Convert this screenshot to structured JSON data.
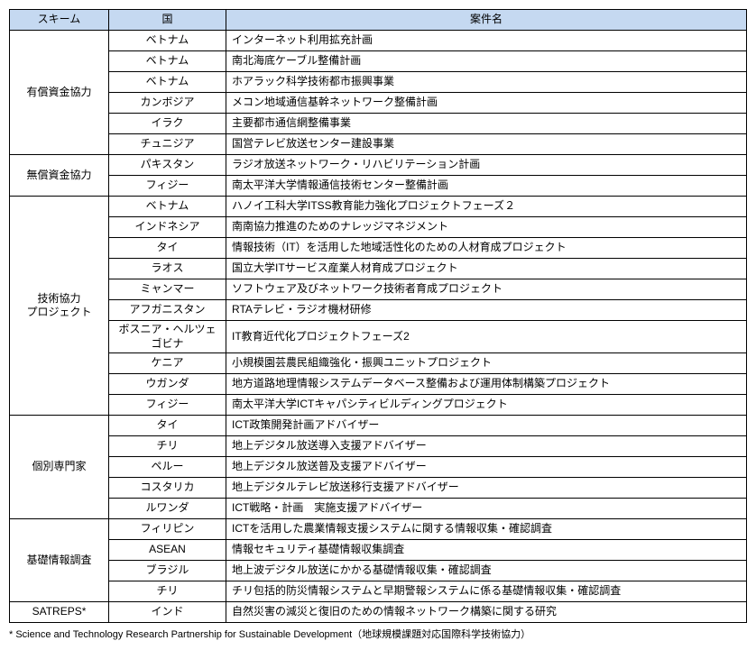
{
  "header_bg": "#c5d9f1",
  "border_color": "#000000",
  "columns": [
    "スキーム",
    "国",
    "案件名"
  ],
  "groups": [
    {
      "scheme": "有償資金協力",
      "rows": [
        {
          "country": "ベトナム",
          "project": "インターネット利用拡充計画"
        },
        {
          "country": "ベトナム",
          "project": "南北海底ケーブル整備計画"
        },
        {
          "country": "ベトナム",
          "project": "ホアラック科学技術都市振興事業"
        },
        {
          "country": "カンボジア",
          "project": "メコン地域通信基幹ネットワーク整備計画"
        },
        {
          "country": "イラク",
          "project": "主要都市通信網整備事業"
        },
        {
          "country": "チュニジア",
          "project": "国営テレビ放送センター建設事業"
        }
      ]
    },
    {
      "scheme": "無償資金協力",
      "rows": [
        {
          "country": "パキスタン",
          "project": "ラジオ放送ネットワーク・リハビリテーション計画"
        },
        {
          "country": "フィジー",
          "project": "南太平洋大学情報通信技術センター整備計画"
        }
      ]
    },
    {
      "scheme": "技術協力\nプロジェクト",
      "rows": [
        {
          "country": "ベトナム",
          "project": "ハノイ工科大学ITSS教育能力強化プロジェクトフェーズ２"
        },
        {
          "country": "インドネシア",
          "project": "南南協力推進のためのナレッジマネジメント"
        },
        {
          "country": "タイ",
          "project": "情報技術（IT）を活用した地域活性化のための人材育成プロジェクト"
        },
        {
          "country": "ラオス",
          "project": "国立大学ITサービス産業人材育成プロジェクト"
        },
        {
          "country": "ミャンマー",
          "project": "ソフトウェア及びネットワーク技術者育成プロジェクト"
        },
        {
          "country": "アフガニスタン",
          "project": "RTAテレビ・ラジオ機材研修"
        },
        {
          "country": "ボスニア・ヘルツェゴビナ",
          "project": "IT教育近代化プロジェクトフェーズ2"
        },
        {
          "country": "ケニア",
          "project": "小規模園芸農民組織強化・振興ユニットプロジェクト"
        },
        {
          "country": "ウガンダ",
          "project": "地方道路地理情報システムデータベース整備および運用体制構築プロジェクト"
        },
        {
          "country": "フィジー",
          "project": "南太平洋大学ICTキャパシティビルディングプロジェクト"
        }
      ]
    },
    {
      "scheme": "個別専門家",
      "rows": [
        {
          "country": "タイ",
          "project": "ICT政策開発計画アドバイザー"
        },
        {
          "country": "チリ",
          "project": "地上デジタル放送導入支援アドバイザー"
        },
        {
          "country": "ペルー",
          "project": "地上デジタル放送普及支援アドバイザー"
        },
        {
          "country": "コスタリカ",
          "project": "地上デジタルテレビ放送移行支援アドバイザー"
        },
        {
          "country": "ルワンダ",
          "project": "ICT戦略・計画　実施支援アドバイザー"
        }
      ]
    },
    {
      "scheme": "基礎情報調査",
      "rows": [
        {
          "country": "フィリピン",
          "project": "ICTを活用した農業情報支援システムに関する情報収集・確認調査"
        },
        {
          "country": "ASEAN",
          "project": "情報セキュリティ基礎情報収集調査"
        },
        {
          "country": "ブラジル",
          "project": "地上波デジタル放送にかかる基礎情報収集・確認調査"
        },
        {
          "country": "チリ",
          "project": "チリ包括的防災情報システムと早期警報システムに係る基礎情報収集・確認調査"
        }
      ]
    },
    {
      "scheme": "SATREPS*",
      "rows": [
        {
          "country": "インド",
          "project": "自然災害の減災と復旧のための情報ネットワーク構築に関する研究"
        }
      ]
    }
  ],
  "footnote": "* Science and Technology Research Partnership for Sustainable Development（地球規模課題対応国際科学技術協力）"
}
